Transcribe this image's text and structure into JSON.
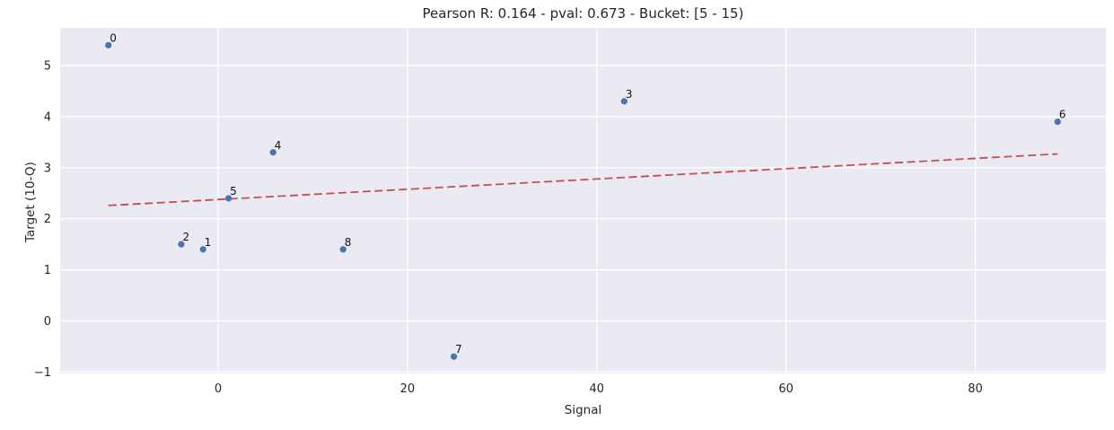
{
  "chart_data": {
    "type": "scatter",
    "title": "Pearson R: 0.164 - pval: 0.673 - Bucket: [5 - 15)",
    "stats": {
      "pearson_r": 0.164,
      "pval": 0.673,
      "bucket": "[5 - 15)"
    },
    "xlabel": "Signal",
    "ylabel": "Target (10-Q)",
    "xlim": [
      -16.7,
      93.8
    ],
    "ylim": [
      -1.03,
      5.74
    ],
    "xticks": [
      0,
      20,
      40,
      60,
      80
    ],
    "xtick_labels": [
      "0",
      "20",
      "40",
      "60",
      "80"
    ],
    "yticks": [
      -1,
      0,
      1,
      2,
      3,
      4,
      5
    ],
    "ytick_labels": [
      "−1",
      "0",
      "1",
      "2",
      "3",
      "4",
      "5"
    ],
    "grid": true,
    "legend_position": "none",
    "points": [
      {
        "label": "0",
        "x": -11.6,
        "y": 5.4
      },
      {
        "label": "1",
        "x": -1.6,
        "y": 1.4
      },
      {
        "label": "2",
        "x": -3.9,
        "y": 1.5
      },
      {
        "label": "3",
        "x": 42.9,
        "y": 4.3
      },
      {
        "label": "4",
        "x": 5.8,
        "y": 3.3
      },
      {
        "label": "5",
        "x": 1.1,
        "y": 2.4
      },
      {
        "label": "6",
        "x": 88.7,
        "y": 3.9
      },
      {
        "label": "7",
        "x": 24.9,
        "y": -0.7
      },
      {
        "label": "8",
        "x": 13.2,
        "y": 1.4
      }
    ],
    "trend_line": {
      "style": "dashed",
      "x": [
        -11.6,
        88.7
      ],
      "y": [
        2.26,
        3.27
      ]
    },
    "colors": {
      "point": "#4c72b0",
      "trend": "#c44e52",
      "axes_bg": "#eaeaf2",
      "grid": "#ffffff",
      "text": "#262626",
      "point_label": "#111111",
      "figure_bg": "#ffffff"
    }
  }
}
